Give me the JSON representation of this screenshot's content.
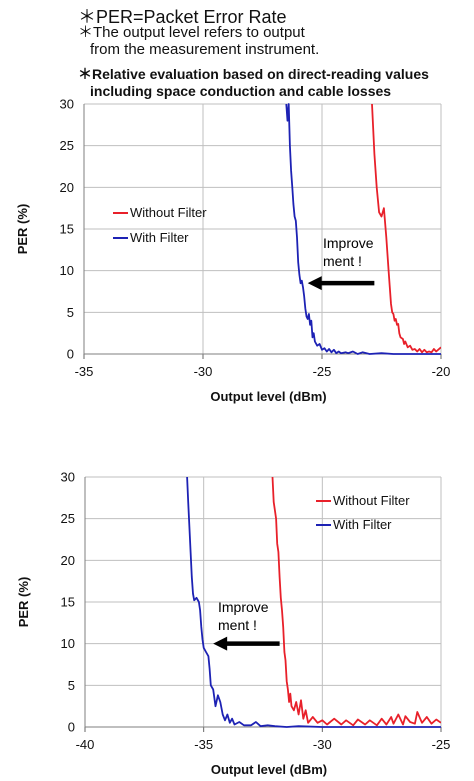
{
  "notes": {
    "line1": "＊PER=Packet Error Rate",
    "line2a": "＊The output level refers to output",
    "line2b": "from the measurement instrument.",
    "line3a": "＊Relative evaluation based on direct-reading values",
    "line3b": "including space conduction and cable losses"
  },
  "colors": {
    "without": "#e8202a",
    "with": "#1d22b4",
    "grid": "#bfbfbf",
    "arrow": "#000000"
  },
  "chart_data": [
    {
      "type": "line",
      "xlabel": "Output level (dBm)",
      "ylabel": "PER (%)",
      "xlim": [
        -35,
        -20
      ],
      "ylim": [
        0,
        30
      ],
      "xticks": [
        -35,
        -30,
        -25,
        -20
      ],
      "xtick_labels": [
        "-35",
        "-30",
        "-25",
        "-20"
      ],
      "yticks": [
        0,
        5,
        10,
        15,
        20,
        25,
        30
      ],
      "ytick_labels": [
        "0",
        "5",
        "10",
        "15",
        "20",
        "25",
        "30"
      ],
      "grid": true,
      "legend_position": "center-left",
      "annotation": {
        "line1": "Improve",
        "line2": "ment !",
        "arrow_from_x": -22.8,
        "arrow_to_x": -25.6,
        "arrow_y": 8.5
      },
      "series": [
        {
          "name": "Without Filter",
          "color": "#e8202a",
          "points": [
            [
              -22.9,
              30
            ],
            [
              -22.8,
              24
            ],
            [
              -22.7,
              20
            ],
            [
              -22.6,
              17
            ],
            [
              -22.5,
              16.5
            ],
            [
              -22.4,
              17.5
            ],
            [
              -22.3,
              14
            ],
            [
              -22.2,
              10
            ],
            [
              -22.15,
              8
            ],
            [
              -22.1,
              6
            ],
            [
              -22.05,
              5
            ],
            [
              -22.0,
              4.8
            ],
            [
              -21.95,
              4
            ],
            [
              -21.9,
              4.2
            ],
            [
              -21.85,
              3.5
            ],
            [
              -21.8,
              3.6
            ],
            [
              -21.75,
              2.5
            ],
            [
              -21.7,
              2.0
            ],
            [
              -21.6,
              1.8
            ],
            [
              -21.55,
              1.2
            ],
            [
              -21.5,
              1.5
            ],
            [
              -21.4,
              0.8
            ],
            [
              -21.3,
              1.0
            ],
            [
              -21.2,
              0.5
            ],
            [
              -21.1,
              0.6
            ],
            [
              -21.0,
              0.3
            ],
            [
              -20.9,
              0.6
            ],
            [
              -20.8,
              0.2
            ],
            [
              -20.7,
              0.5
            ],
            [
              -20.6,
              0.2
            ],
            [
              -20.5,
              0.3
            ],
            [
              -20.4,
              0.2
            ],
            [
              -20.3,
              0.6
            ],
            [
              -20.2,
              0.3
            ],
            [
              -20.0,
              0.8
            ]
          ]
        },
        {
          "name": "With Filter",
          "color": "#1d22b4",
          "points": [
            [
              -26.5,
              30
            ],
            [
              -26.45,
              28
            ],
            [
              -26.4,
              30
            ],
            [
              -26.35,
              25
            ],
            [
              -26.3,
              22
            ],
            [
              -26.25,
              20
            ],
            [
              -26.2,
              18
            ],
            [
              -26.15,
              16.5
            ],
            [
              -26.1,
              16
            ],
            [
              -26.05,
              14
            ],
            [
              -26.0,
              11
            ],
            [
              -25.95,
              9.5
            ],
            [
              -25.9,
              8.5
            ],
            [
              -25.85,
              8.8
            ],
            [
              -25.8,
              8
            ],
            [
              -25.75,
              7
            ],
            [
              -25.7,
              5.5
            ],
            [
              -25.65,
              4.5
            ],
            [
              -25.6,
              4.2
            ],
            [
              -25.55,
              4.8
            ],
            [
              -25.5,
              3.5
            ],
            [
              -25.45,
              4.0
            ],
            [
              -25.4,
              2.0
            ],
            [
              -25.35,
              2.5
            ],
            [
              -25.3,
              1.5
            ],
            [
              -25.2,
              1.0
            ],
            [
              -25.1,
              1.2
            ],
            [
              -25.0,
              0.5
            ],
            [
              -24.9,
              0.7
            ],
            [
              -24.8,
              0.3
            ],
            [
              -24.7,
              0.6
            ],
            [
              -24.6,
              0.2
            ],
            [
              -24.5,
              0.5
            ],
            [
              -24.4,
              0.1
            ],
            [
              -24.3,
              0.3
            ],
            [
              -24.2,
              0.1
            ],
            [
              -24.0,
              0.2
            ],
            [
              -23.9,
              0.1
            ],
            [
              -23.7,
              0.3
            ],
            [
              -23.5,
              0
            ],
            [
              -23.3,
              0.2
            ],
            [
              -23.0,
              0
            ],
            [
              -22.5,
              0.1
            ],
            [
              -22.0,
              0
            ],
            [
              -21.0,
              0
            ],
            [
              -20.0,
              0
            ]
          ]
        }
      ]
    },
    {
      "type": "line",
      "xlabel": "Output level (dBm)",
      "ylabel": "PER (%)",
      "xlim": [
        -40,
        -25
      ],
      "ylim": [
        0,
        30
      ],
      "xticks": [
        -40,
        -35,
        -30,
        -25
      ],
      "xtick_labels": [
        "-40",
        "-35",
        "-30",
        "-25"
      ],
      "yticks": [
        0,
        5,
        10,
        15,
        20,
        25,
        30
      ],
      "ytick_labels": [
        "0",
        "5",
        "10",
        "15",
        "20",
        "25",
        "30"
      ],
      "grid": true,
      "legend_position": "top-right",
      "annotation": {
        "line1": "Improve",
        "line2": "ment !",
        "arrow_from_x": -31.8,
        "arrow_to_x": -34.6,
        "arrow_y": 10.0
      },
      "series": [
        {
          "name": "Without Filter",
          "color": "#e8202a",
          "points": [
            [
              -32.1,
              30
            ],
            [
              -32.05,
              27
            ],
            [
              -32.0,
              26
            ],
            [
              -31.95,
              25
            ],
            [
              -31.9,
              22
            ],
            [
              -31.85,
              21
            ],
            [
              -31.8,
              18
            ],
            [
              -31.75,
              15.5
            ],
            [
              -31.7,
              14
            ],
            [
              -31.65,
              12
            ],
            [
              -31.6,
              9
            ],
            [
              -31.55,
              8
            ],
            [
              -31.5,
              5.5
            ],
            [
              -31.45,
              4.5
            ],
            [
              -31.4,
              3.0
            ],
            [
              -31.35,
              4.0
            ],
            [
              -31.3,
              2.5
            ],
            [
              -31.2,
              2.0
            ],
            [
              -31.1,
              3.0
            ],
            [
              -31.0,
              1.5
            ],
            [
              -30.9,
              3.2
            ],
            [
              -30.8,
              1.0
            ],
            [
              -30.7,
              2.0
            ],
            [
              -30.6,
              0.5
            ],
            [
              -30.4,
              1.2
            ],
            [
              -30.2,
              0.5
            ],
            [
              -30.0,
              0.8
            ],
            [
              -29.8,
              0.3
            ],
            [
              -29.5,
              1.0
            ],
            [
              -29.2,
              0.3
            ],
            [
              -29.0,
              0.8
            ],
            [
              -28.7,
              0.2
            ],
            [
              -28.5,
              0.9
            ],
            [
              -28.2,
              0.3
            ],
            [
              -28.0,
              0.8
            ],
            [
              -27.7,
              0.2
            ],
            [
              -27.5,
              1.0
            ],
            [
              -27.3,
              0.3
            ],
            [
              -27.1,
              1.2
            ],
            [
              -27.0,
              0.4
            ],
            [
              -26.8,
              1.5
            ],
            [
              -26.6,
              0.3
            ],
            [
              -26.5,
              1.3
            ],
            [
              -26.3,
              0.6
            ],
            [
              -26.1,
              0.4
            ],
            [
              -26.0,
              1.8
            ],
            [
              -25.8,
              0.5
            ],
            [
              -25.6,
              1.2
            ],
            [
              -25.4,
              0.4
            ],
            [
              -25.2,
              0.9
            ],
            [
              -25.0,
              0.5
            ]
          ]
        },
        {
          "name": "With Filter",
          "color": "#1d22b4",
          "points": [
            [
              -35.7,
              30
            ],
            [
              -35.65,
              27
            ],
            [
              -35.6,
              24
            ],
            [
              -35.55,
              21
            ],
            [
              -35.5,
              18
            ],
            [
              -35.45,
              16
            ],
            [
              -35.4,
              15.2
            ],
            [
              -35.3,
              15.5
            ],
            [
              -35.2,
              15.0
            ],
            [
              -35.15,
              14
            ],
            [
              -35.1,
              12
            ],
            [
              -35.05,
              10.5
            ],
            [
              -35.0,
              9.5
            ],
            [
              -34.9,
              9.0
            ],
            [
              -34.8,
              8.5
            ],
            [
              -34.75,
              7
            ],
            [
              -34.7,
              5
            ],
            [
              -34.6,
              4.5
            ],
            [
              -34.5,
              2.5
            ],
            [
              -34.4,
              3.8
            ],
            [
              -34.3,
              3.0
            ],
            [
              -34.2,
              1.5
            ],
            [
              -34.1,
              0.8
            ],
            [
              -34.0,
              1.5
            ],
            [
              -33.9,
              0.5
            ],
            [
              -33.8,
              1.0
            ],
            [
              -33.7,
              0.3
            ],
            [
              -33.5,
              0.6
            ],
            [
              -33.3,
              0.2
            ],
            [
              -33.0,
              0.2
            ],
            [
              -32.8,
              0.6
            ],
            [
              -32.6,
              0.1
            ],
            [
              -32.3,
              0.2
            ],
            [
              -32.0,
              0.1
            ],
            [
              -31.5,
              0
            ],
            [
              -31.0,
              0.1
            ],
            [
              -30.0,
              0
            ],
            [
              -28.0,
              0
            ],
            [
              -25.0,
              0
            ]
          ]
        }
      ]
    }
  ]
}
